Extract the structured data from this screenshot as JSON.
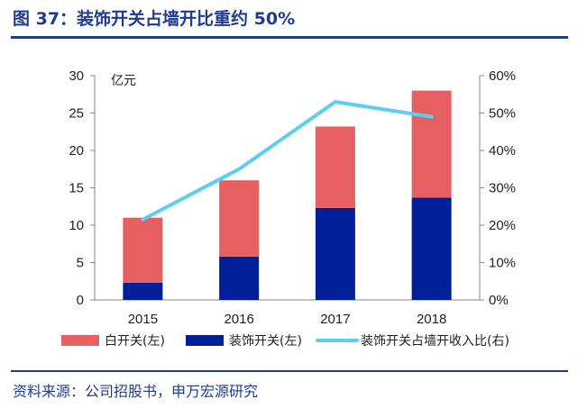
{
  "figure": {
    "title": "图 37：装饰开关占墙开比重约 50%",
    "source": "资料来源：公司招股书，申万宏源研究"
  },
  "colors": {
    "brand": "#1f3b8f",
    "white_switch": "#e66062",
    "decor_switch": "#00209a",
    "ratio_line": "#5ccdf3"
  },
  "chart_data": {
    "type": "bar",
    "stacked": true,
    "categories": [
      "2015",
      "2016",
      "2017",
      "2018"
    ],
    "y_left": {
      "unit": "亿元",
      "ylim": [
        0,
        30
      ],
      "ticks": [
        0,
        5,
        10,
        15,
        20,
        25,
        30
      ]
    },
    "y_right": {
      "ylim": [
        0,
        0.6
      ],
      "ticks": [
        "0%",
        "10%",
        "20%",
        "30%",
        "40%",
        "50%",
        "60%"
      ]
    },
    "series": [
      {
        "name": "装饰开关(左)",
        "type": "bar",
        "axis": "left",
        "values": [
          2.3,
          5.8,
          12.3,
          13.7
        ]
      },
      {
        "name": "白开关(左)",
        "type": "bar",
        "axis": "left",
        "values": [
          8.7,
          10.2,
          10.9,
          14.3
        ]
      },
      {
        "name": "装饰开关占墙开收入比(右)",
        "type": "line",
        "axis": "right",
        "values": [
          0.215,
          0.35,
          0.53,
          0.49
        ]
      }
    ],
    "legend": [
      "白开关(左)",
      "装饰开关(左)",
      "装饰开关占墙开收入比(右)"
    ],
    "legend_position": "bottom",
    "grid": false
  }
}
